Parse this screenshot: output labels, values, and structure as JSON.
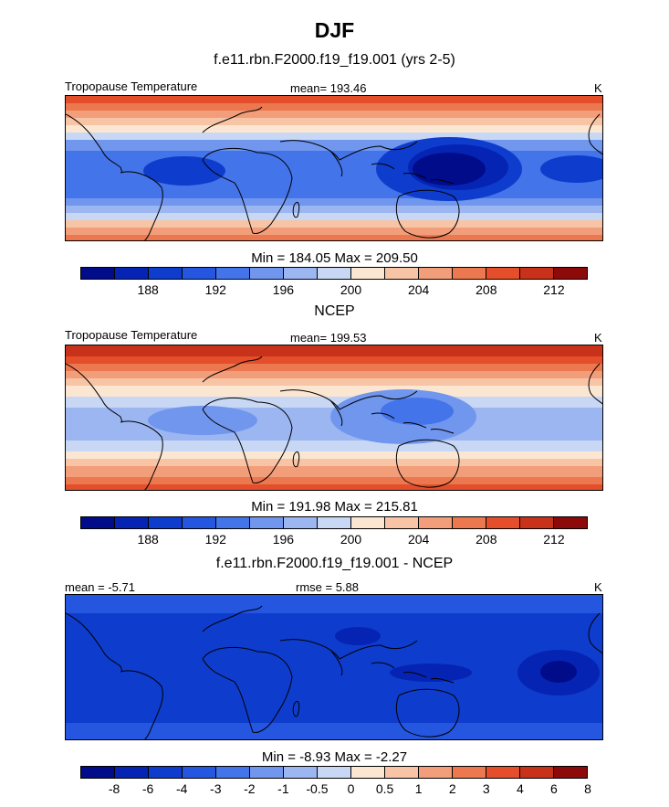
{
  "figure": {
    "title": "DJF"
  },
  "colors": {
    "scale": [
      "#000c8a",
      "#0624b4",
      "#0e3ccc",
      "#2456e0",
      "#4474ea",
      "#7096ee",
      "#9cb6f2",
      "#c8d8f4",
      "#fbe6d2",
      "#f8c4a6",
      "#f39e7a",
      "#ec7850",
      "#e44e2a",
      "#c8321a",
      "#8c0a0a"
    ],
    "land_outline": "#000000"
  },
  "chart_data": [
    {
      "type": "heatmap",
      "panel": "model",
      "title": "f.e11.rbn.F2000.f19_f19.001 (yrs 2-5)",
      "left_label": "Tropopause Temperature",
      "center_label": "mean= 193.46",
      "right_label": "K",
      "min_max_label": "Min = 184.05 Max = 209.50",
      "min": 184.05,
      "max": 209.5,
      "mean": 193.46,
      "units": "K",
      "colorbar_labels": [
        "188",
        "192",
        "196",
        "200",
        "204",
        "208",
        "212"
      ],
      "colorbar_label_boundaries": [
        2,
        4,
        6,
        8,
        10,
        12,
        14
      ]
    },
    {
      "type": "heatmap",
      "panel": "obs",
      "title": "NCEP",
      "left_label": "Tropopause Temperature",
      "center_label": "mean= 199.53",
      "right_label": "K",
      "min_max_label": "Min = 191.98 Max = 215.81",
      "min": 191.98,
      "max": 215.81,
      "mean": 199.53,
      "units": "K",
      "colorbar_labels": [
        "188",
        "192",
        "196",
        "200",
        "204",
        "208",
        "212"
      ],
      "colorbar_label_boundaries": [
        2,
        4,
        6,
        8,
        10,
        12,
        14
      ]
    },
    {
      "type": "heatmap",
      "panel": "difference",
      "title": "f.e11.rbn.F2000.f19_f19.001 - NCEP",
      "left_label": "mean =  -5.71",
      "center_label": "rmse =   5.88",
      "right_label": "K",
      "min_max_label": "Min =  -8.93 Max =  -2.27",
      "min": -8.93,
      "max": -2.27,
      "mean": -5.71,
      "rmse": 5.88,
      "units": "K",
      "colorbar_labels": [
        "-8",
        "-6",
        "-4",
        "-3",
        "-2",
        "-1",
        "-0.5",
        "0",
        "0.5",
        "1",
        "2",
        "3",
        "4",
        "6",
        "8"
      ],
      "colorbar_label_boundaries": [
        1,
        2,
        3,
        4,
        5,
        6,
        7,
        8,
        9,
        10,
        11,
        12,
        13,
        14,
        15
      ]
    }
  ]
}
